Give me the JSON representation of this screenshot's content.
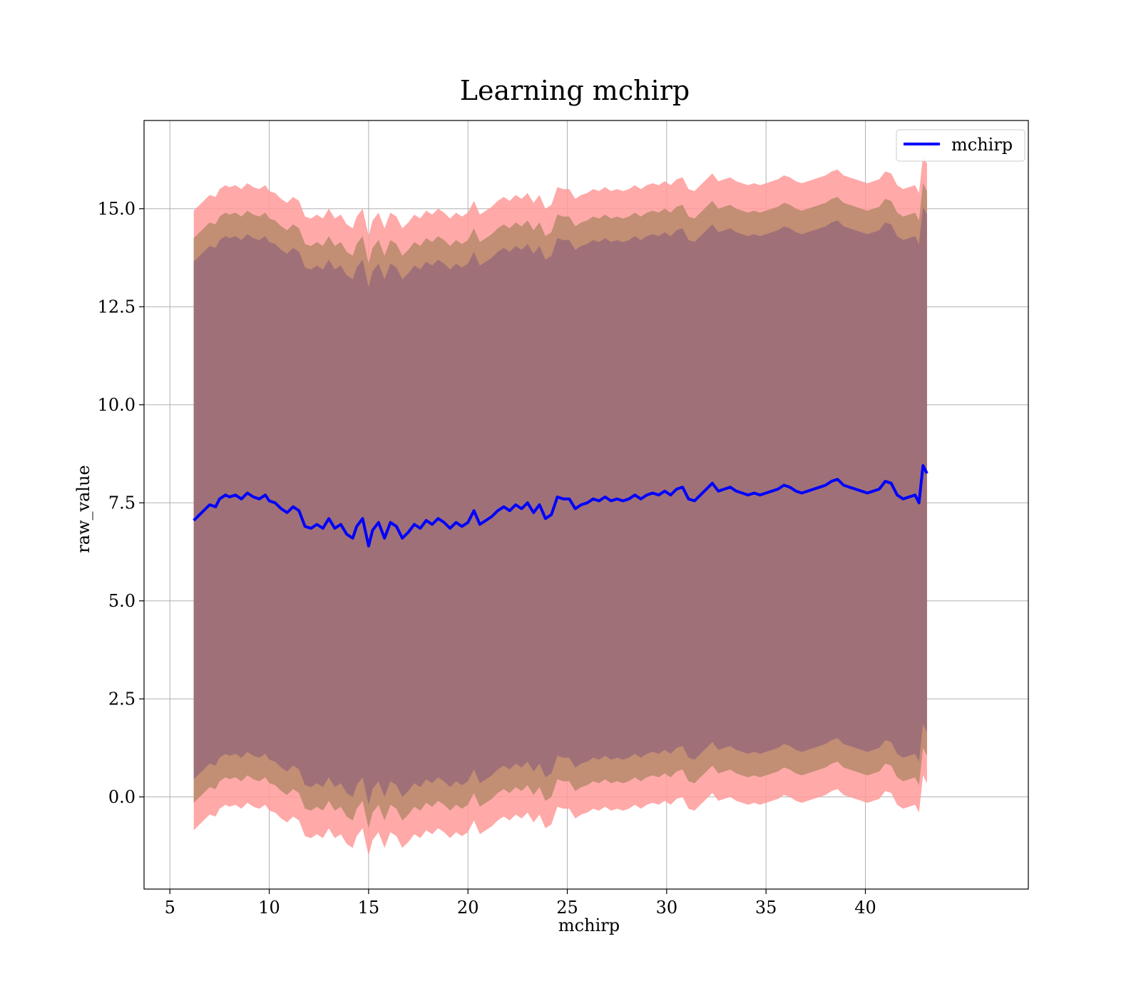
{
  "chart_data": {
    "type": "line",
    "title": "Learning mchirp",
    "xlabel": "mchirp",
    "ylabel": "raw_value",
    "xlim": [
      3.7,
      48.2
    ],
    "ylim": [
      -2.35,
      17.25
    ],
    "xticks": [
      5,
      10,
      15,
      20,
      25,
      30,
      35,
      40
    ],
    "yticks": [
      0.0,
      2.5,
      5.0,
      7.5,
      10.0,
      12.5,
      15.0
    ],
    "xtick_labels": [
      "5",
      "10",
      "15",
      "20",
      "25",
      "30",
      "35",
      "40"
    ],
    "ytick_labels": [
      "0.0",
      "2.5",
      "5.0",
      "7.5",
      "10.0",
      "12.5",
      "15.0"
    ],
    "grid": true,
    "legend": {
      "position": "top-right",
      "entries": [
        "mchirp"
      ]
    },
    "colors": {
      "line": "#0000ff",
      "band_outer": "#ff9a9a",
      "band_middle": "#c28e74",
      "band_inner": "#a07078",
      "grid": "#b0b0b0"
    },
    "band_offsets": {
      "inner": 6.6,
      "middle": 7.2,
      "outer": 7.9
    },
    "series": [
      {
        "name": "mchirp",
        "x": [
          6.2,
          6.5,
          6.8,
          7.0,
          7.3,
          7.5,
          7.8,
          8.0,
          8.3,
          8.6,
          8.9,
          9.2,
          9.5,
          9.8,
          10.0,
          10.3,
          10.6,
          10.9,
          11.2,
          11.5,
          11.8,
          12.1,
          12.4,
          12.7,
          13.0,
          13.3,
          13.6,
          13.9,
          14.2,
          14.4,
          14.7,
          15.0,
          15.2,
          15.5,
          15.8,
          16.1,
          16.4,
          16.7,
          17.0,
          17.3,
          17.6,
          17.9,
          18.2,
          18.5,
          18.8,
          19.1,
          19.4,
          19.7,
          20.0,
          20.3,
          20.6,
          20.9,
          21.2,
          21.5,
          21.8,
          22.1,
          22.4,
          22.7,
          23.0,
          23.3,
          23.6,
          23.9,
          24.2,
          24.5,
          24.8,
          25.1,
          25.4,
          25.7,
          26.0,
          26.3,
          26.6,
          26.9,
          27.2,
          27.5,
          27.8,
          28.1,
          28.4,
          28.7,
          29.0,
          29.3,
          29.6,
          29.9,
          30.2,
          30.5,
          30.8,
          31.1,
          31.4,
          31.7,
          32.0,
          32.3,
          32.6,
          32.9,
          33.2,
          33.5,
          33.8,
          34.1,
          34.4,
          34.7,
          35.0,
          35.3,
          35.6,
          35.9,
          36.2,
          36.5,
          36.8,
          37.1,
          37.4,
          37.7,
          38.0,
          38.3,
          38.6,
          38.9,
          39.2,
          39.5,
          39.8,
          40.1,
          40.4,
          40.7,
          41.0,
          41.3,
          41.6,
          41.9,
          42.2,
          42.5,
          42.7,
          42.9,
          43.1
        ],
        "y": [
          7.05,
          7.2,
          7.35,
          7.45,
          7.4,
          7.6,
          7.7,
          7.65,
          7.7,
          7.6,
          7.75,
          7.65,
          7.6,
          7.7,
          7.55,
          7.5,
          7.35,
          7.25,
          7.4,
          7.3,
          6.9,
          6.85,
          6.95,
          6.85,
          7.1,
          6.85,
          6.95,
          6.7,
          6.6,
          6.9,
          7.1,
          6.4,
          6.8,
          7.0,
          6.6,
          7.0,
          6.9,
          6.6,
          6.75,
          6.95,
          6.85,
          7.05,
          6.95,
          7.1,
          7.0,
          6.85,
          7.0,
          6.9,
          7.0,
          7.3,
          6.95,
          7.05,
          7.15,
          7.3,
          7.4,
          7.3,
          7.45,
          7.35,
          7.5,
          7.25,
          7.45,
          7.1,
          7.2,
          7.65,
          7.6,
          7.6,
          7.35,
          7.45,
          7.5,
          7.6,
          7.55,
          7.65,
          7.55,
          7.6,
          7.55,
          7.6,
          7.7,
          7.6,
          7.7,
          7.75,
          7.7,
          7.8,
          7.7,
          7.85,
          7.9,
          7.6,
          7.55,
          7.7,
          7.85,
          8.0,
          7.8,
          7.85,
          7.9,
          7.8,
          7.75,
          7.7,
          7.75,
          7.7,
          7.75,
          7.8,
          7.85,
          7.95,
          7.9,
          7.8,
          7.75,
          7.8,
          7.85,
          7.9,
          7.95,
          8.05,
          8.1,
          7.95,
          7.9,
          7.85,
          7.8,
          7.75,
          7.8,
          7.85,
          8.05,
          8.0,
          7.7,
          7.6,
          7.65,
          7.7,
          7.5,
          8.45,
          8.25
        ]
      }
    ]
  }
}
